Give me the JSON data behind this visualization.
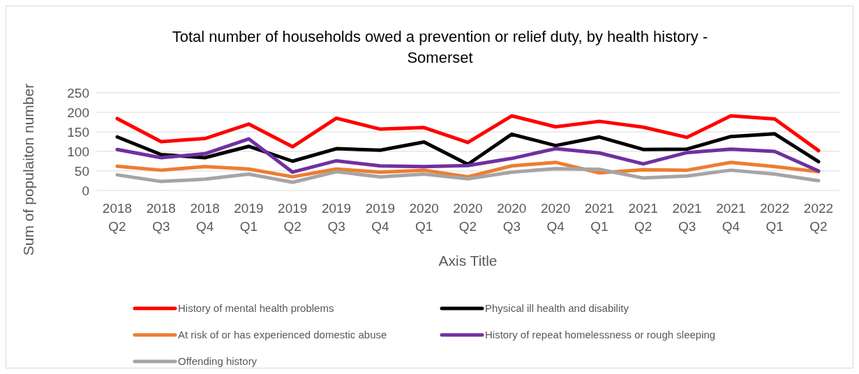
{
  "chart_data": {
    "type": "line",
    "title": "Total number of households owed a prevention or relief duty, by health history - Somerset",
    "xlabel": "Axis Title",
    "ylabel": "Sum of populaiton number",
    "categories": [
      "2018 Q2",
      "2018 Q3",
      "2018 Q4",
      "2019 Q1",
      "2019 Q2",
      "2019 Q3",
      "2019 Q4",
      "2020 Q1",
      "2020 Q2",
      "2020 Q3",
      "2020 Q4",
      "2021 Q1",
      "2021 Q2",
      "2021 Q3",
      "2021 Q4",
      "2022 Q1",
      "2022 Q2"
    ],
    "series": [
      {
        "name": "History of mental health problems",
        "color": "#ff0000",
        "values": [
          184,
          125,
          133,
          170,
          112,
          185,
          157,
          161,
          123,
          191,
          163,
          177,
          162,
          136,
          191,
          183,
          102
        ]
      },
      {
        "name": "Physical ill health and disability",
        "color": "#000000",
        "values": [
          137,
          92,
          84,
          113,
          75,
          107,
          103,
          124,
          67,
          144,
          115,
          137,
          105,
          106,
          138,
          145,
          74
        ]
      },
      {
        "name": "At risk of or has experienced domestic abuse",
        "color": "#ed7d31",
        "values": [
          62,
          52,
          61,
          55,
          35,
          55,
          47,
          52,
          35,
          63,
          72,
          45,
          53,
          52,
          72,
          61,
          48
        ]
      },
      {
        "name": "History of repeat homelessness or rough sleeping",
        "color": "#7030a0",
        "values": [
          105,
          84,
          94,
          132,
          47,
          76,
          63,
          61,
          64,
          82,
          107,
          96,
          68,
          97,
          106,
          100,
          50
        ]
      },
      {
        "name": "Offending history",
        "color": "#a5a5a5",
        "values": [
          40,
          23,
          29,
          42,
          21,
          48,
          35,
          42,
          30,
          47,
          56,
          54,
          32,
          37,
          52,
          42,
          25
        ]
      }
    ],
    "ylim": [
      0,
      250
    ],
    "yticks": [
      0,
      50,
      100,
      150,
      200,
      250
    ],
    "grid": "y",
    "legend": "bottom",
    "marker": "none",
    "line_style": "solid"
  }
}
